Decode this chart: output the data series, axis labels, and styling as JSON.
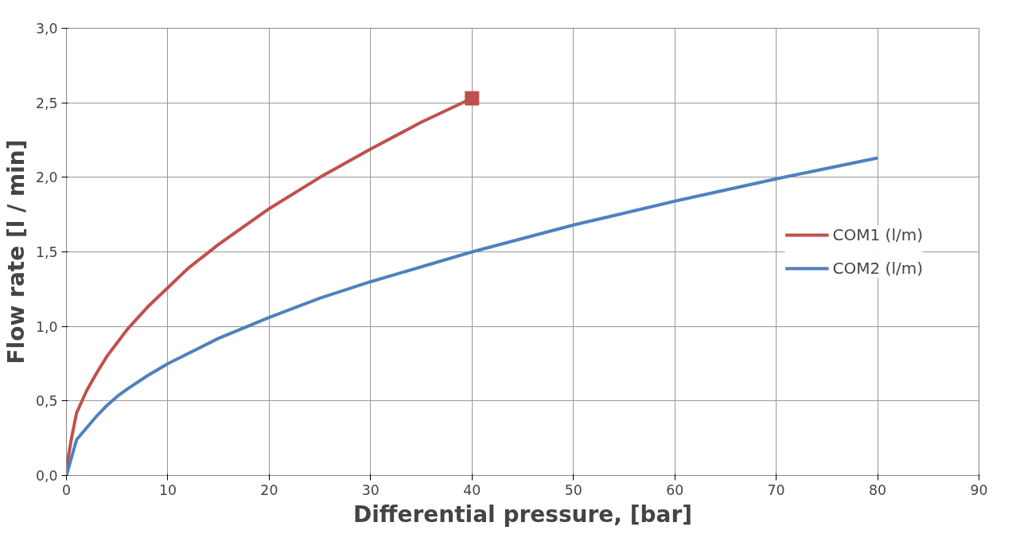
{
  "chart_data": {
    "type": "line",
    "xlabel": "Differential pressure, [bar]",
    "ylabel": "Flow rate [l / min]",
    "xlim": [
      0,
      90
    ],
    "xticks": [
      0,
      10,
      20,
      30,
      40,
      50,
      60,
      70,
      80,
      90
    ],
    "ylim": [
      0,
      3
    ],
    "yticks": [
      {
        "value": 0,
        "label": "0,0"
      },
      {
        "value": 0.5,
        "label": "0,5"
      },
      {
        "value": 1,
        "label": "1,0"
      },
      {
        "value": 1.5,
        "label": "1,5"
      },
      {
        "value": 2,
        "label": "2,0"
      },
      {
        "value": 2.5,
        "label": "2,5"
      },
      {
        "value": 3,
        "label": "3,0"
      }
    ],
    "grid": true,
    "legend": "right",
    "line_style": "solid",
    "marker": "none",
    "series": [
      {
        "name": "COM1 (l/m)",
        "color": "#c0504d",
        "x": [
          0,
          0.5,
          1,
          2,
          3,
          4,
          5,
          6,
          8,
          10,
          12,
          15,
          20,
          25,
          30,
          35,
          40
        ],
        "values": [
          0.05,
          0.25,
          0.42,
          0.57,
          0.69,
          0.8,
          0.89,
          0.98,
          1.13,
          1.26,
          1.39,
          1.55,
          1.79,
          2.0,
          2.19,
          2.37,
          2.53
        ]
      },
      {
        "name": "COM2 (l/m)",
        "color": "#4f81bd",
        "x": [
          0,
          0.5,
          1,
          2,
          3,
          4,
          5,
          6,
          8,
          10,
          15,
          20,
          25,
          30,
          40,
          50,
          60,
          70,
          80
        ],
        "values": [
          0,
          0.12,
          0.24,
          0.32,
          0.4,
          0.47,
          0.53,
          0.58,
          0.67,
          0.75,
          0.92,
          1.06,
          1.19,
          1.3,
          1.5,
          1.68,
          1.84,
          1.99,
          2.13
        ]
      },
      {
        "type": "scatter",
        "marker": "square",
        "color": "#c0504d",
        "x": [
          40
        ],
        "values": [
          2.53
        ]
      }
    ]
  }
}
